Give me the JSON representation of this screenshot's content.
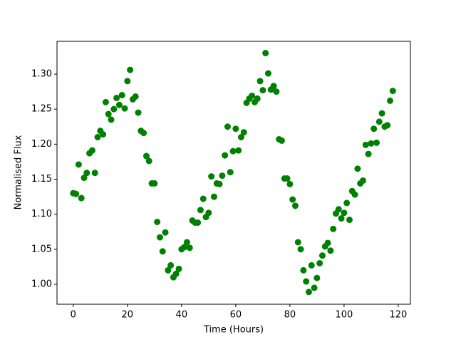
{
  "chart_data": {
    "type": "scatter",
    "xlabel": "Time (Hours)",
    "ylabel": "Normalised Flux",
    "color": "#008000",
    "x": [
      0,
      1,
      2,
      3,
      4,
      5,
      6,
      7,
      8,
      9,
      10,
      11,
      12,
      13,
      14,
      15,
      16,
      17,
      18,
      19,
      20,
      21,
      22,
      23,
      24,
      25,
      26,
      27,
      28,
      29,
      30,
      31,
      32,
      33,
      34,
      35,
      36,
      37,
      38,
      39,
      40,
      41,
      42,
      43,
      44,
      45,
      46,
      47,
      48,
      49,
      50,
      51,
      52,
      53,
      54,
      55,
      56,
      57,
      58,
      59,
      60,
      61,
      62,
      63,
      64,
      65,
      66,
      67,
      68,
      69,
      70,
      71,
      72,
      73,
      74,
      75,
      76,
      77,
      78,
      79,
      80,
      81,
      82,
      83,
      84,
      85,
      86,
      87,
      88,
      89,
      90,
      91,
      92,
      93,
      94,
      95,
      96,
      97,
      98,
      99,
      100,
      101,
      102,
      103,
      104,
      105,
      106,
      107,
      108,
      109,
      110,
      111,
      112,
      113,
      114,
      115,
      116,
      117,
      118
    ],
    "values": [
      1.13,
      1.129,
      1.171,
      1.123,
      1.152,
      1.159,
      1.187,
      1.191,
      1.159,
      1.21,
      1.219,
      1.214,
      1.26,
      1.243,
      1.235,
      1.25,
      1.266,
      1.256,
      1.27,
      1.251,
      1.29,
      1.306,
      1.264,
      1.268,
      1.245,
      1.219,
      1.216,
      1.183,
      1.176,
      1.144,
      1.144,
      1.089,
      1.067,
      1.047,
      1.074,
      1.02,
      1.027,
      1.01,
      1.015,
      1.022,
      1.05,
      1.053,
      1.06,
      1.052,
      1.091,
      1.088,
      1.088,
      1.106,
      1.122,
      1.096,
      1.102,
      1.154,
      1.125,
      1.144,
      1.143,
      1.155,
      1.184,
      1.225,
      1.16,
      1.19,
      1.222,
      1.191,
      1.21,
      1.217,
      1.259,
      1.265,
      1.269,
      1.26,
      1.265,
      1.29,
      1.277,
      1.33,
      1.301,
      1.278,
      1.283,
      1.275,
      1.207,
      1.205,
      1.151,
      1.151,
      1.143,
      1.121,
      1.112,
      1.06,
      1.05,
      1.02,
      1.004,
      0.989,
      1.027,
      0.995,
      1.009,
      1.03,
      1.041,
      1.054,
      1.059,
      1.048,
      1.079,
      1.101,
      1.107,
      1.094,
      1.102,
      1.116,
      1.092,
      1.133,
      1.128,
      1.165,
      1.144,
      1.148,
      1.199,
      1.186,
      1.201,
      1.222,
      1.202,
      1.232,
      1.244,
      1.225,
      1.227,
      1.262,
      1.276
    ],
    "xlim": [
      -6,
      124.5
    ],
    "ylim": [
      0.9715,
      1.3468
    ],
    "xticks": [
      0,
      20,
      40,
      60,
      80,
      100,
      120
    ],
    "yticks": [
      {
        "value": 1.0,
        "label": "1.00"
      },
      {
        "value": 1.05,
        "label": "1.05"
      },
      {
        "value": 1.1,
        "label": "1.10"
      },
      {
        "value": 1.15,
        "label": "1.15"
      },
      {
        "value": 1.2,
        "label": "1.20"
      },
      {
        "value": 1.25,
        "label": "1.25"
      },
      {
        "value": 1.3,
        "label": "1.30"
      }
    ]
  }
}
